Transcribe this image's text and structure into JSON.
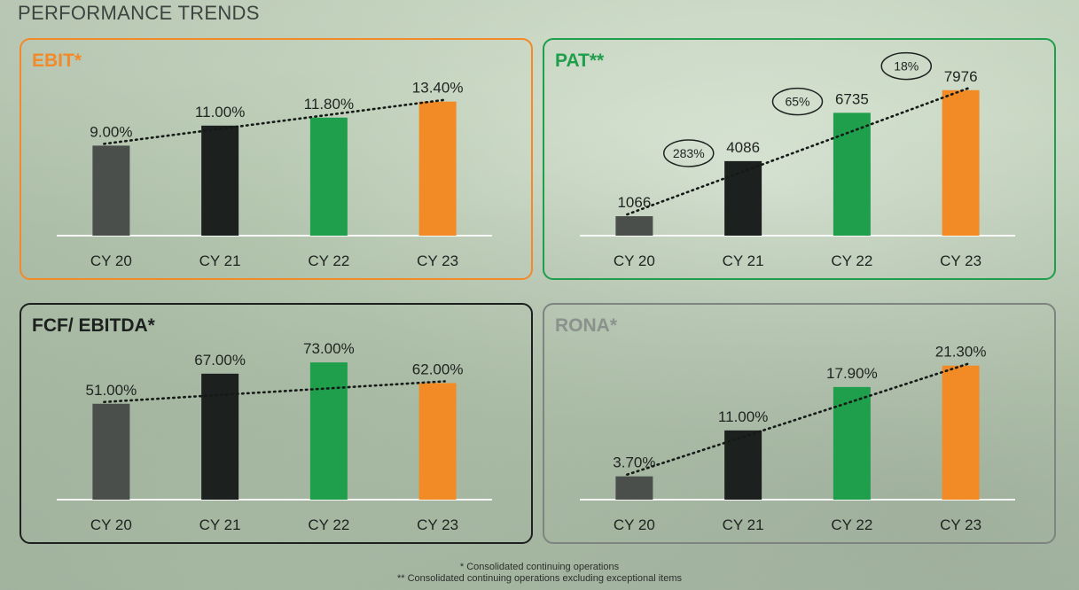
{
  "page": {
    "title": "PERFORMANCE TRENDS"
  },
  "footnotes": {
    "line1": "* Consolidated continuing operations",
    "line2": "** Consolidated continuing operations excluding exceptional items"
  },
  "chart_data": [
    {
      "type": "bar",
      "title": "EBIT*",
      "title_color": "#f28a2a",
      "border_color": "#f28a2a",
      "categories": [
        "CY 20",
        "CY 21",
        "CY 22",
        "CY 23"
      ],
      "values": [
        9.0,
        11.0,
        11.8,
        13.4
      ],
      "labels": [
        "9.00%",
        "11.00%",
        "11.80%",
        "13.40%"
      ],
      "bar_colors": [
        "#4b4f4b",
        "#1c2120",
        "#1f9e4b",
        "#f28a25"
      ],
      "ylim": [
        0,
        15.5
      ],
      "trend_line": true,
      "growth_annotations": []
    },
    {
      "type": "bar",
      "title": "PAT**",
      "title_color": "#1f9e4b",
      "border_color": "#1f9e4b",
      "categories": [
        "CY 20",
        "CY 21",
        "CY 22",
        "CY 23"
      ],
      "values": [
        1066,
        4086,
        6735,
        7976
      ],
      "labels": [
        "1066",
        "4086",
        "6735",
        "7976"
      ],
      "bar_colors": [
        "#4b4f4b",
        "#1c2120",
        "#1f9e4b",
        "#f28a25"
      ],
      "ylim": [
        0,
        8500
      ],
      "trend_line": true,
      "growth_annotations": [
        {
          "between": [
            0,
            1
          ],
          "text": "283%"
        },
        {
          "between": [
            1,
            2
          ],
          "text": "65%"
        },
        {
          "between": [
            2,
            3
          ],
          "text": "18%"
        }
      ]
    },
    {
      "type": "bar",
      "title": "FCF/ EBITDA*",
      "title_color": "#1c2120",
      "border_color": "#1c2120",
      "categories": [
        "CY 20",
        "CY 21",
        "CY 22",
        "CY 23"
      ],
      "values": [
        51.0,
        67.0,
        73.0,
        62.0
      ],
      "labels": [
        "51.00%",
        "67.00%",
        "73.00%",
        "62.00%"
      ],
      "bar_colors": [
        "#4b4f4b",
        "#1c2120",
        "#1f9e4b",
        "#f28a25"
      ],
      "ylim": [
        0,
        82
      ],
      "trend_line": true,
      "growth_annotations": []
    },
    {
      "type": "bar",
      "title": "RONA*",
      "title_color": "#8b918c",
      "border_color": "#7e847f",
      "categories": [
        "CY 20",
        "CY 21",
        "CY 22",
        "CY 23"
      ],
      "values": [
        3.7,
        11.0,
        17.9,
        21.3
      ],
      "labels": [
        "3.70%",
        "11.00%",
        "17.90%",
        "21.30%"
      ],
      "bar_colors": [
        "#4b4f4b",
        "#1c2120",
        "#1f9e4b",
        "#f28a25"
      ],
      "ylim": [
        0,
        24.5
      ],
      "trend_line": true,
      "growth_annotations": []
    }
  ]
}
